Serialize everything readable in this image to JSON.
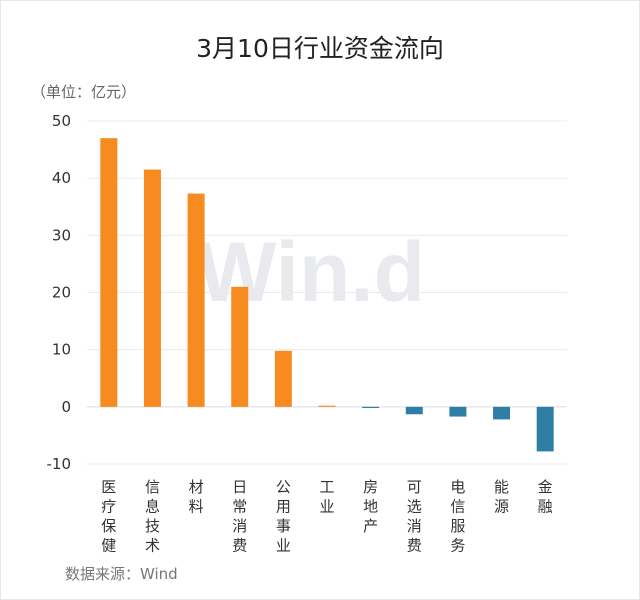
{
  "chart_data": {
    "type": "bar",
    "title": "3月10日行业资金流向",
    "unit_label": "（单位：亿元）",
    "source": "数据来源：Wind",
    "watermark": "Win.d",
    "categories": [
      "医疗保健",
      "信息技术",
      "材料",
      "日常消费",
      "公用事业",
      "工业",
      "房地产",
      "可选消费",
      "电信服务",
      "能源",
      "金融"
    ],
    "values": [
      47.0,
      41.5,
      37.3,
      21.0,
      9.8,
      0.2,
      -0.2,
      -1.3,
      -1.7,
      -2.2,
      -7.8
    ],
    "ylim": [
      -10,
      50
    ],
    "yticks": [
      50,
      40,
      30,
      20,
      10,
      0,
      -10
    ],
    "grid": true,
    "legend": "none",
    "colors": {
      "positive": "#f78b1f",
      "negative": "#2e7ea6"
    }
  }
}
